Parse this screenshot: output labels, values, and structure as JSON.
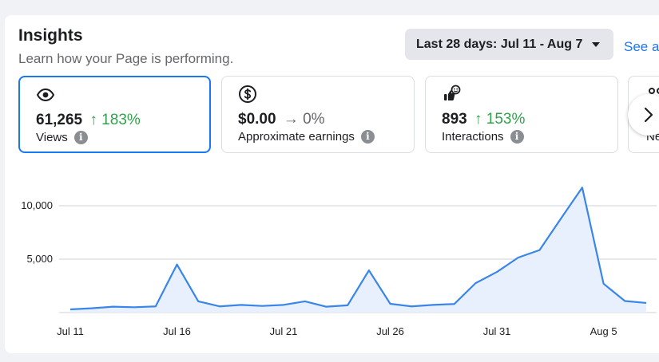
{
  "header": {
    "title": "Insights",
    "subtitle": "Learn how your Page is performing.",
    "date_range": "Last 28 days: Jul 11 - Aug 7",
    "see_all": "See a"
  },
  "metrics": [
    {
      "icon": "eye-icon",
      "value": "61,265",
      "change": "↑ 183%",
      "trend": "up",
      "label": "Views",
      "selected": true
    },
    {
      "icon": "dollar-icon",
      "value": "$0.00",
      "change": "→ 0%",
      "trend": "flat",
      "label": "Approximate earnings",
      "selected": false
    },
    {
      "icon": "reactions-icon",
      "value": "893",
      "change": "↑ 153%",
      "trend": "up",
      "label": "Interactions",
      "selected": false
    },
    {
      "icon": "people-icon",
      "value": "",
      "change": "",
      "trend": "",
      "label": "Ne",
      "selected": false
    }
  ],
  "info_glyph": "i",
  "colors": {
    "accent": "#1877f2",
    "up": "#31a24c",
    "line": "#3a86e8",
    "fill": "#e7f0fc"
  },
  "chart_data": {
    "type": "area",
    "x": [
      "Jul 11",
      "Jul 12",
      "Jul 13",
      "Jul 14",
      "Jul 15",
      "Jul 16",
      "Jul 17",
      "Jul 18",
      "Jul 19",
      "Jul 20",
      "Jul 21",
      "Jul 22",
      "Jul 23",
      "Jul 24",
      "Jul 25",
      "Jul 26",
      "Jul 27",
      "Jul 28",
      "Jul 29",
      "Jul 30",
      "Jul 31",
      "Aug 1",
      "Aug 2",
      "Aug 3",
      "Aug 4",
      "Aug 5",
      "Aug 6",
      "Aug 7"
    ],
    "series": [
      {
        "values": [
          300,
          400,
          550,
          500,
          580,
          4500,
          1050,
          580,
          720,
          620,
          720,
          1050,
          550,
          680,
          3950,
          820,
          580,
          720,
          800,
          2750,
          3800,
          5150,
          5850,
          8800,
          11700,
          2700,
          1080,
          900
        ]
      }
    ],
    "xticks": [
      "Jul 11",
      "Jul 16",
      "Jul 21",
      "Jul 26",
      "Jul 31",
      "Aug 5"
    ],
    "yticks": [
      {
        "value": 5000,
        "label": "5,000"
      },
      {
        "value": 10000,
        "label": "10,000"
      }
    ],
    "ylim": [
      0,
      12500
    ],
    "grid": true
  }
}
